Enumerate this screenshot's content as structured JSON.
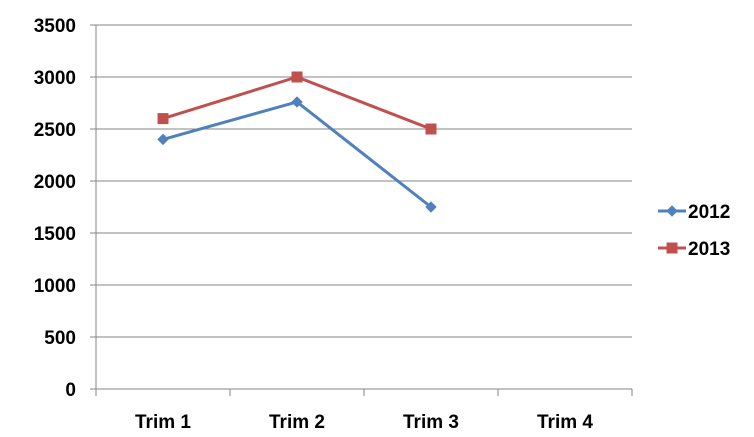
{
  "chart_data": {
    "type": "line",
    "categories": [
      "Trim 1",
      "Trim 2",
      "Trim 3",
      "Trim 4"
    ],
    "series": [
      {
        "name": "2012",
        "values": [
          2400,
          2760,
          1750,
          null
        ],
        "color": "#4F81BD",
        "marker": "diamond"
      },
      {
        "name": "2013",
        "values": [
          2600,
          3000,
          2500,
          null
        ],
        "color": "#C0504D",
        "marker": "square"
      }
    ],
    "title": "",
    "xlabel": "",
    "ylabel": "",
    "ylim": [
      0,
      3500
    ],
    "yticks": [
      0,
      500,
      1000,
      1500,
      2000,
      2500,
      3000,
      3500
    ],
    "grid": "horizontal",
    "legend_position": "right"
  }
}
